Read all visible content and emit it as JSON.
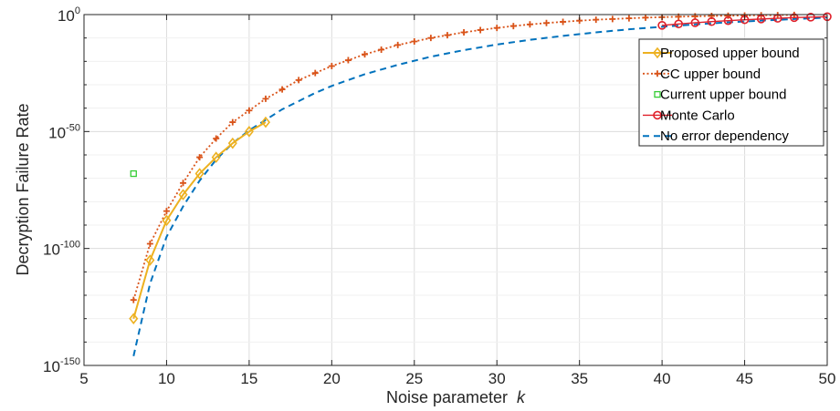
{
  "chart_data": {
    "type": "line",
    "title": "",
    "xlabel": "Noise parameter",
    "xlabel_var": "k",
    "ylabel": "Decryption Failure Rate",
    "xlim": [
      5,
      50
    ],
    "ylim_exp": [
      -150,
      0
    ],
    "y_scale": "log",
    "y_tick_base": "10",
    "x_ticks": [
      5,
      10,
      15,
      20,
      25,
      30,
      35,
      40,
      45,
      50
    ],
    "y_tick_exps": [
      -150,
      -100,
      -50,
      0
    ],
    "grid": true,
    "legend_position": "top-right",
    "series": [
      {
        "name": "Proposed upper bound",
        "color": "#EDB120",
        "line": "solid",
        "marker": "diamond",
        "x": [
          8,
          9,
          10,
          11,
          12,
          13,
          14,
          15,
          16
        ],
        "log10_y": [
          -130,
          -105,
          -88,
          -77,
          -68,
          -61,
          -55,
          -50,
          -46
        ]
      },
      {
        "name": "CC upper bound",
        "color": "#D95319",
        "line": "dotted",
        "marker": "plus",
        "x": [
          8,
          9,
          10,
          11,
          12,
          13,
          14,
          15,
          16,
          17,
          18,
          19,
          20,
          21,
          22,
          23,
          24,
          25,
          26,
          27,
          28,
          29,
          30,
          31,
          32,
          33,
          34,
          35,
          36,
          37,
          38,
          39,
          40,
          41,
          42,
          43,
          44,
          45,
          46,
          47,
          48
        ],
        "log10_y": [
          -122,
          -98,
          -84,
          -72,
          -61,
          -53,
          -46,
          -41,
          -36,
          -32,
          -28,
          -25,
          -22,
          -19.5,
          -17,
          -15,
          -13,
          -11.5,
          -10,
          -8.8,
          -7.6,
          -6.6,
          -5.7,
          -4.9,
          -4.2,
          -3.6,
          -3.1,
          -2.6,
          -2.2,
          -1.9,
          -1.6,
          -1.3,
          -1.1,
          -0.9,
          -0.75,
          -0.6,
          -0.5,
          -0.4,
          -0.3,
          -0.22,
          -0.15
        ]
      },
      {
        "name": "Current upper bound",
        "color": "#33CC33",
        "line": "none",
        "marker": "square",
        "x": [
          8
        ],
        "log10_y": [
          -68
        ]
      },
      {
        "name": "Monte Carlo",
        "color": "#E0202A",
        "line": "solid",
        "marker": "circle",
        "x": [
          40,
          41,
          42,
          43,
          44,
          45,
          46,
          47,
          48,
          49,
          50
        ],
        "log10_y": [
          -4.6,
          -4.0,
          -3.5,
          -3.0,
          -2.6,
          -2.2,
          -1.9,
          -1.6,
          -1.3,
          -1.1,
          -0.9
        ]
      },
      {
        "name": "No error dependency",
        "color": "#0072BD",
        "line": "dashed",
        "marker": "none",
        "x": [
          8,
          9,
          10,
          11,
          12,
          13,
          14,
          15,
          16,
          17,
          18,
          19,
          20,
          22,
          24,
          26,
          28,
          30,
          32,
          34,
          36,
          38,
          40,
          42,
          44,
          46,
          48,
          50
        ],
        "log10_y": [
          -146,
          -115,
          -95,
          -82,
          -71,
          -62,
          -55,
          -49.5,
          -45,
          -40.5,
          -37,
          -33.5,
          -30.5,
          -25.5,
          -21.5,
          -18,
          -15.2,
          -12.8,
          -10.8,
          -9.1,
          -7.6,
          -6.3,
          -5.2,
          -4.2,
          -3.3,
          -2.6,
          -1.9,
          -1.3
        ]
      }
    ]
  }
}
